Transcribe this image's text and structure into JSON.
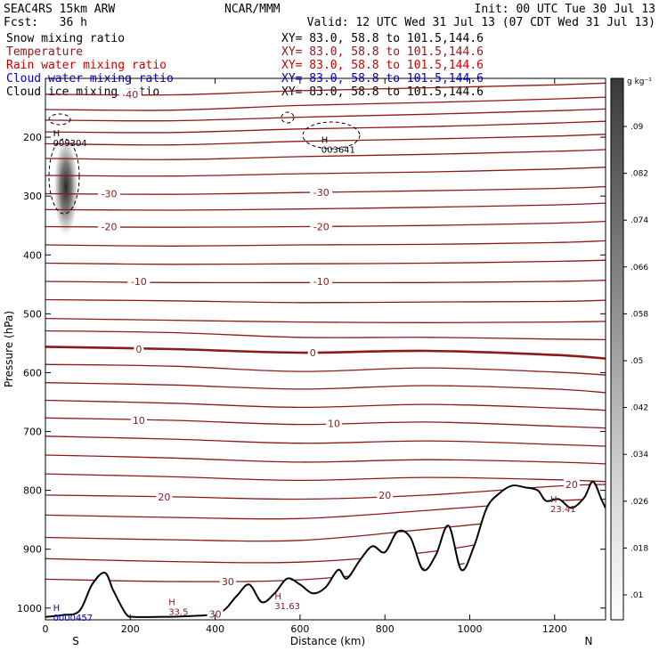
{
  "header": {
    "title": "SEAC4RS 15km ARW",
    "forecast": "Fcst:   36 h",
    "org": "NCAR/MMM",
    "init": "Init: 00 UTC Tue 30 Jul 13",
    "valid": "Valid: 12 UTC Wed 31 Jul 13 (07 CDT Wed 31 Jul 13)"
  },
  "fields": [
    {
      "name": "Snow mixing ratio",
      "xy": "XY=  83.0, 58.8 to 101.5,144.6",
      "color": "#000000"
    },
    {
      "name": "Temperature",
      "xy": "XY=  83.0, 58.8 to 101.5,144.6",
      "color": "#8b1a1a"
    },
    {
      "name": "Rain water mixing ratio",
      "xy": "XY=  83.0, 58.8 to 101.5,144.6",
      "color": "#cc0000"
    },
    {
      "name": "Cloud water mixing ratio",
      "xy": "XY=  83.0, 58.8 to 101.5,144.6",
      "color": "#0000cc"
    },
    {
      "name": "Cloud ice mixing ratio",
      "xy": "XY=  83.0, 58.8 to 101.5,144.6",
      "color": "#000000"
    }
  ],
  "colorbar": {
    "unit": "g kg⁻¹",
    "ticks": [
      ".09",
      ".082",
      ".074",
      ".066",
      ".058",
      ".05",
      ".042",
      ".034",
      ".026",
      ".018",
      ".01"
    ],
    "values": [
      0.09,
      0.082,
      0.074,
      0.066,
      0.058,
      0.05,
      0.042,
      0.034,
      0.026,
      0.018,
      0.01
    ]
  },
  "chart_data": {
    "type": "cross-section contour",
    "xlabel": "Distance (km)",
    "ylabel": "Pressure (hPa)",
    "xlim": [
      0,
      1320
    ],
    "ylim": [
      1020,
      100
    ],
    "x_ticks": [
      "0",
      "200",
      "400",
      "600",
      "800",
      "1000",
      "1200"
    ],
    "x_tick_values": [
      0,
      200,
      400,
      600,
      800,
      1000,
      1200
    ],
    "y_ticks": [
      "200",
      "300",
      "400",
      "500",
      "600",
      "700",
      "800",
      "900",
      "1000"
    ],
    "y_tick_values": [
      200,
      300,
      400,
      500,
      600,
      700,
      800,
      900,
      1000
    ],
    "endpoints": {
      "left": "S",
      "right": "N"
    },
    "temperature_isotherms": [
      {
        "temp": -40,
        "x": [
          0,
          300,
          600,
          900,
          1200,
          1320
        ],
        "p": [
          127,
          128,
          121,
          116,
          111,
          108
        ]
      },
      {
        "temp": -35,
        "x": [
          0,
          300,
          600,
          900,
          1200,
          1320
        ],
        "p": [
          153,
          154,
          146,
          141,
          135,
          132
        ]
      },
      {
        "temp": -30,
        "x": [
          0,
          300,
          600,
          900,
          1200,
          1320
        ],
        "p": [
          171,
          172,
          166,
          161,
          155,
          152
        ]
      },
      {
        "temp": -30,
        "x": [
          0,
          300,
          600,
          900,
          1200,
          1320
        ],
        "p": [
          191,
          192,
          186,
          182,
          176,
          173
        ]
      },
      {
        "temp": -30,
        "x": [
          0,
          300,
          600,
          900,
          1200,
          1320
        ],
        "p": [
          211,
          213,
          207,
          203,
          198,
          195
        ]
      },
      {
        "temp": -30,
        "x": [
          0,
          300,
          600,
          900,
          1200,
          1320
        ],
        "p": [
          236,
          238,
          233,
          229,
          224,
          221
        ]
      },
      {
        "temp": -30,
        "x": [
          0,
          300,
          600,
          900,
          1200,
          1320
        ],
        "p": [
          265,
          266,
          262,
          259,
          254,
          251
        ]
      },
      {
        "temp": -30,
        "x": [
          0,
          300,
          600,
          900,
          1200,
          1320
        ],
        "p": [
          296,
          297,
          294,
          291,
          287,
          284
        ]
      },
      {
        "temp": -20,
        "x": [
          0,
          300,
          600,
          900,
          1200,
          1320
        ],
        "p": [
          323,
          324,
          322,
          319,
          315,
          312
        ]
      },
      {
        "temp": -20,
        "x": [
          0,
          300,
          600,
          900,
          1200,
          1320
        ],
        "p": [
          352,
          353,
          352,
          350,
          346,
          343
        ]
      },
      {
        "temp": -15,
        "x": [
          0,
          300,
          600,
          900,
          1200,
          1320
        ],
        "p": [
          383,
          385,
          383,
          382,
          379,
          376
        ]
      },
      {
        "temp": -10,
        "x": [
          0,
          300,
          600,
          900,
          1200,
          1320
        ],
        "p": [
          414,
          416,
          415,
          414,
          411,
          409
        ]
      },
      {
        "temp": -10,
        "x": [
          0,
          300,
          600,
          900,
          1200,
          1320
        ],
        "p": [
          445,
          447,
          447,
          447,
          445,
          443
        ]
      },
      {
        "temp": -5,
        "x": [
          0,
          300,
          600,
          900,
          1200,
          1320
        ],
        "p": [
          476,
          478,
          481,
          480,
          479,
          477
        ]
      },
      {
        "temp": -3,
        "x": [
          0,
          300,
          600,
          900,
          1200,
          1320
        ],
        "p": [
          508,
          511,
          514,
          515,
          514,
          513
        ]
      },
      {
        "temp": -1,
        "x": [
          0,
          300,
          600,
          900,
          1200,
          1320
        ],
        "p": [
          529,
          532,
          540,
          540,
          543,
          544
        ]
      },
      {
        "temp": 0,
        "x": [
          0,
          300,
          600,
          900,
          1200,
          1320
        ],
        "p": [
          556,
          560,
          566,
          563,
          570,
          576
        ]
      },
      {
        "temp": 3,
        "x": [
          0,
          300,
          600,
          900,
          1200,
          1320
        ],
        "p": [
          586,
          589,
          598,
          592,
          599,
          604
        ]
      },
      {
        "temp": 5,
        "x": [
          0,
          300,
          600,
          900,
          1200,
          1320
        ],
        "p": [
          617,
          621,
          628,
          622,
          628,
          634
        ]
      },
      {
        "temp": 7,
        "x": [
          0,
          300,
          600,
          900,
          1200,
          1320
        ],
        "p": [
          647,
          652,
          659,
          654,
          660,
          664
        ]
      },
      {
        "temp": 10,
        "x": [
          0,
          300,
          600,
          900,
          1200,
          1320
        ],
        "p": [
          677,
          681,
          688,
          684,
          691,
          694
        ]
      },
      {
        "temp": 12,
        "x": [
          0,
          300,
          600,
          900,
          1200,
          1320
        ],
        "p": [
          708,
          713,
          720,
          716,
          722,
          725
        ]
      },
      {
        "temp": 15,
        "x": [
          0,
          300,
          600,
          900,
          1200,
          1320
        ],
        "p": [
          740,
          745,
          752,
          748,
          752,
          755
        ]
      },
      {
        "temp": 17,
        "x": [
          0,
          300,
          600,
          900,
          1200,
          1320
        ],
        "p": [
          772,
          777,
          783,
          778,
          782,
          785
        ]
      },
      {
        "temp": 20,
        "x": [
          0,
          300,
          600,
          900,
          1200,
          1320
        ],
        "p": [
          808,
          811,
          815,
          808,
          793,
          790
        ]
      },
      {
        "temp": 22,
        "x": [
          0,
          300,
          600,
          900,
          1200,
          1320
        ],
        "p": [
          842,
          846,
          848,
          834,
          818,
          815
        ]
      },
      {
        "temp": 25,
        "x": [
          0,
          300,
          600,
          900,
          1200,
          1320
        ],
        "p": [
          880,
          884,
          885,
          866,
          845,
          843
        ]
      },
      {
        "temp": 27,
        "x": [
          0,
          300,
          600,
          900,
          1200,
          1320
        ],
        "p": [
          916,
          921,
          922,
          905,
          870,
          868
        ]
      },
      {
        "temp": 30,
        "x": [
          0,
          300,
          600,
          900,
          1200,
          1320
        ],
        "p": [
          951,
          955,
          952,
          932,
          905,
          900
        ]
      }
    ],
    "terrain": {
      "x": [
        0,
        40,
        80,
        110,
        140,
        160,
        190,
        210,
        260,
        330,
        410,
        450,
        480,
        510,
        540,
        570,
        600,
        630,
        660,
        690,
        710,
        740,
        770,
        800,
        830,
        860,
        890,
        920,
        950,
        980,
        1010,
        1040,
        1070,
        1100,
        1130,
        1160,
        1180,
        1210,
        1240,
        1270,
        1290,
        1310,
        1320
      ],
      "p": [
        1015,
        1012,
        1005,
        960,
        940,
        970,
        1010,
        1015,
        1015,
        1014,
        1008,
        980,
        960,
        990,
        975,
        950,
        960,
        975,
        965,
        935,
        950,
        920,
        895,
        905,
        870,
        880,
        935,
        910,
        860,
        935,
        895,
        830,
        805,
        792,
        795,
        800,
        818,
        815,
        830,
        812,
        785,
        815,
        830
      ]
    },
    "contour_labels": [
      {
        "text": "-40",
        "x": 200,
        "p": 127
      },
      {
        "text": "-30",
        "x": 150,
        "p": 296
      },
      {
        "text": "-30",
        "x": 650,
        "p": 294
      },
      {
        "text": "-20",
        "x": 150,
        "p": 352
      },
      {
        "text": "-20",
        "x": 650,
        "p": 352
      },
      {
        "text": "-10",
        "x": 220,
        "p": 445
      },
      {
        "text": "-10",
        "x": 650,
        "p": 445
      },
      {
        "text": "0",
        "x": 220,
        "p": 560
      },
      {
        "text": "0",
        "x": 630,
        "p": 566
      },
      {
        "text": "10",
        "x": 220,
        "p": 681
      },
      {
        "text": "10",
        "x": 680,
        "p": 686
      },
      {
        "text": "20",
        "x": 280,
        "p": 811
      },
      {
        "text": "20",
        "x": 800,
        "p": 808
      },
      {
        "text": "20",
        "x": 1240,
        "p": 790
      },
      {
        "text": "30",
        "x": 430,
        "p": 955
      },
      {
        "text": "30",
        "x": 400,
        "p": 1010
      }
    ],
    "maxima": [
      {
        "text": "H",
        "sub": "33.5",
        "x": 290,
        "p": 995,
        "color": "#8b1a1a"
      },
      {
        "text": "H",
        "sub": "31.63",
        "x": 540,
        "p": 985,
        "color": "#8b1a1a"
      },
      {
        "text": "H",
        "sub": "23.41",
        "x": 1190,
        "p": 820,
        "color": "#8b1a1a"
      },
      {
        "text": "H",
        "sub": "009304",
        "x": 18,
        "p": 198,
        "color": "#000000"
      },
      {
        "text": "H",
        "sub": "003641",
        "x": 650,
        "p": 210,
        "color": "#000000"
      },
      {
        "text": "H",
        "sub": "0000457",
        "x": 18,
        "p": 1005,
        "color": "#0000cc"
      }
    ]
  }
}
